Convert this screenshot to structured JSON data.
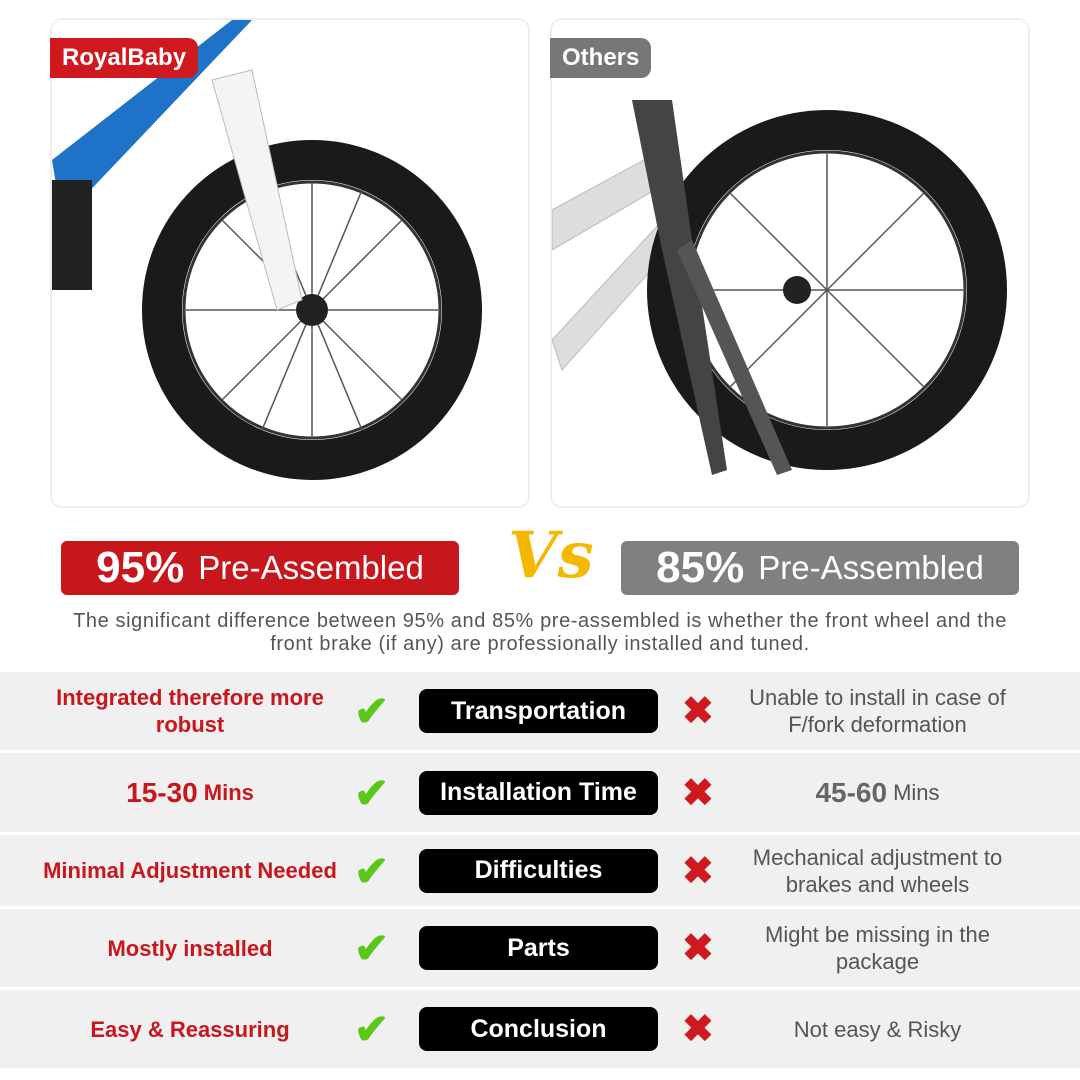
{
  "left_panel": {
    "brand": "RoyalBaby",
    "brand_color": "#d0181f",
    "frame_color": "#1e73c8"
  },
  "right_panel": {
    "brand": "Others",
    "brand_color": "#777777",
    "frame_color": "#d8d8d8"
  },
  "comparison": {
    "left": {
      "percent": "95%",
      "label": "Pre-Assembled",
      "color": "#c8161d"
    },
    "vs": "Vs",
    "right": {
      "percent": "85%",
      "label": "Pre-Assembled",
      "color": "#808080"
    },
    "description": "The significant difference between 95% and 85% pre-assembled is whether the front wheel and the front brake (if any) are professionally installed and tuned."
  },
  "rows": [
    {
      "left": "Integrated therefore more robust",
      "category": "Transportation",
      "right": "Unable to install in case of F/fork deformation"
    },
    {
      "left_value": "15-30",
      "left_unit": "Mins",
      "category": "Installation Time",
      "right_value": "45-60",
      "right_unit": "Mins"
    },
    {
      "left": "Minimal Adjustment Needed",
      "category": "Difficulties",
      "right": "Mechanical adjustment to brakes and wheels"
    },
    {
      "left": "Mostly installed",
      "category": "Parts",
      "right": "Might be missing in the package"
    },
    {
      "left": "Easy & Reassuring",
      "category": "Conclusion",
      "right": "Not easy & Risky"
    }
  ],
  "icons": {
    "check": "check-icon",
    "cross": "cross-icon"
  }
}
